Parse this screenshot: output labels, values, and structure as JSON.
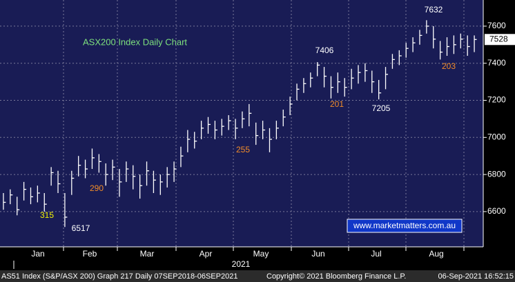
{
  "chart_data": {
    "type": "ohlc",
    "title": "ASX200 Index Daily Chart",
    "color": "#ffffff",
    "background": "#191c55",
    "high": [
      6700,
      6720,
      6680,
      6760,
      6730,
      6740,
      6700,
      6840,
      6820,
      6700,
      6820,
      6900,
      6880,
      6940,
      6910,
      6860,
      6880,
      6830,
      6870,
      6850,
      6800,
      6870,
      6820,
      6800,
      6840,
      6870,
      6950,
      7040,
      7030,
      7090,
      7110,
      7090,
      7100,
      7120,
      7100,
      7140,
      7180,
      7080,
      7090,
      7050,
      7090,
      7150,
      7220,
      7290,
      7320,
      7350,
      7406,
      7380,
      7330,
      7350,
      7320,
      7370,
      7390,
      7400,
      7360,
      7310,
      7380,
      7450,
      7470,
      7510,
      7540,
      7580,
      7632,
      7600,
      7520,
      7540,
      7550,
      7560,
      7550,
      7550
    ],
    "low": [
      6610,
      6640,
      6580,
      6660,
      6640,
      6650,
      6600,
      6740,
      6700,
      6517,
      6690,
      6790,
      6780,
      6830,
      6810,
      6740,
      6770,
      6680,
      6760,
      6720,
      6670,
      6740,
      6700,
      6690,
      6730,
      6760,
      6840,
      6920,
      6940,
      6990,
      7020,
      6990,
      7010,
      7040,
      6990,
      7050,
      7060,
      6960,
      6990,
      6920,
      6990,
      7060,
      7120,
      7200,
      7240,
      7270,
      7330,
      7270,
      7210,
      7240,
      7220,
      7260,
      7290,
      7300,
      7240,
      7205,
      7260,
      7370,
      7390,
      7430,
      7460,
      7500,
      7560,
      7480,
      7420,
      7440,
      7450,
      7480,
      7440,
      7460
    ],
    "close": [
      6650,
      6690,
      6610,
      6720,
      6680,
      6700,
      6640,
      6810,
      6750,
      6570,
      6780,
      6850,
      6830,
      6890,
      6870,
      6800,
      6840,
      6760,
      6830,
      6790,
      6740,
      6820,
      6770,
      6760,
      6800,
      6830,
      6900,
      6990,
      6980,
      7050,
      7070,
      7040,
      7060,
      7090,
      7050,
      7100,
      7130,
      7010,
      7040,
      6990,
      7050,
      7110,
      7180,
      7260,
      7290,
      7320,
      7390,
      7330,
      7270,
      7300,
      7270,
      7320,
      7350,
      7360,
      7300,
      7240,
      7340,
      7420,
      7440,
      7480,
      7510,
      7550,
      7600,
      7530,
      7460,
      7490,
      7500,
      7530,
      7490,
      7528
    ],
    "ylim": [
      6410,
      7741
    ],
    "yticks": [
      6600,
      6800,
      7000,
      7200,
      7400,
      7600
    ],
    "grid": true,
    "x_labels": [
      "Jan",
      "Feb",
      "Mar",
      "Apr",
      "May",
      "Jun",
      "Jul",
      "Aug"
    ],
    "year_label": "2021",
    "annotations": [
      {
        "text": "7632",
        "color": "#ffffff"
      },
      {
        "text": "7406",
        "color": "#ffffff"
      },
      {
        "text": "7205",
        "color": "#ffffff"
      },
      {
        "text": "6517",
        "color": "#ffffff"
      },
      {
        "text": "315",
        "color": "#f2f200"
      },
      {
        "text": "290",
        "color": "#f28c28"
      },
      {
        "text": "255",
        "color": "#f28c28"
      },
      {
        "text": "201",
        "color": "#f28c28"
      },
      {
        "text": "203",
        "color": "#f28c28"
      }
    ],
    "watermark": "www.marketmatters.com.au",
    "footer": [
      "AS51 Index (S&P/ASX 200) Graph 217  Daily 07SEP2018-06SEP2021",
      "Copyright© 2021 Bloomberg Finance L.P.",
      "06-Sep-2021 16:52:15"
    ]
  }
}
